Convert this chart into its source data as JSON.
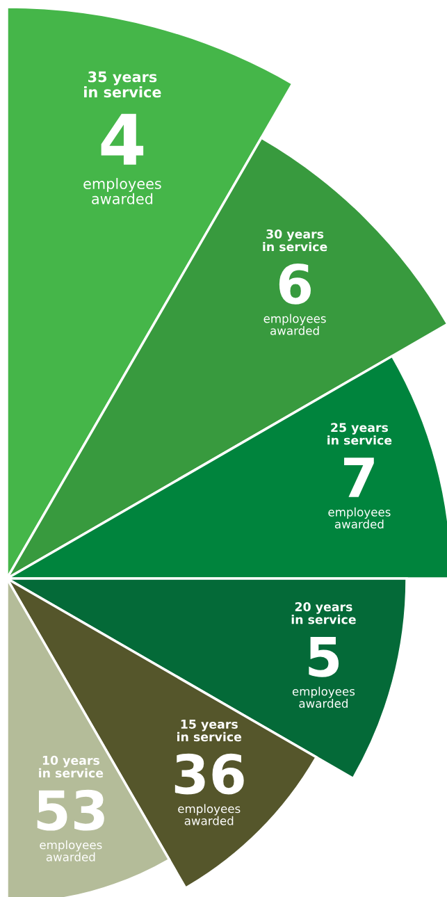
{
  "chart_data": {
    "type": "other",
    "categories": [
      "35 years\nin service",
      "30 years\nin service",
      "25 years\nin service",
      "20 years\nin service",
      "15 years\nin service",
      "10 years\nin service"
    ],
    "values": [
      4,
      6,
      7,
      5,
      36,
      53
    ],
    "data_labels": true,
    "colors": [
      "#45b649",
      "#389a3e",
      "#00843d",
      "#046a38",
      "#55562b",
      "#b4bc99"
    ],
    "annotations": [
      "employees\nawarded",
      "employees\nawarded",
      "employees\nawarded",
      "employees\nawarded",
      "employees\nawarded",
      "employees\nawarded"
    ]
  }
}
